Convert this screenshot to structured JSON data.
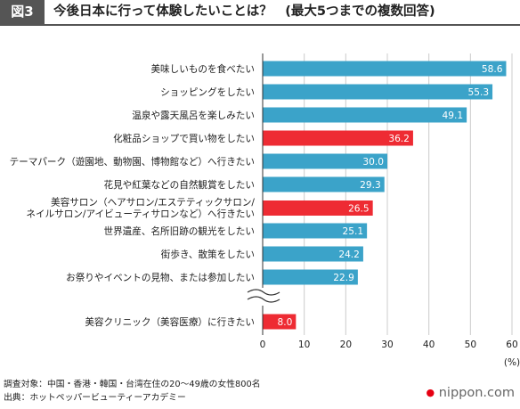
{
  "header": {
    "figure_label": "図3",
    "title": "今後日本に行って体験したいことは？　(最大5つまでの複数回答)"
  },
  "chart_data": {
    "type": "bar",
    "orientation": "horizontal",
    "categories": [
      [
        "美味しいものを食べたい"
      ],
      [
        "ショッピングをしたい"
      ],
      [
        "温泉や露天風呂を楽しみたい"
      ],
      [
        "化粧品ショップで買い物をしたい"
      ],
      [
        "テーマパーク（遊園地、動物園、博物館など）へ行きたい"
      ],
      [
        "花見や紅葉などの自然観賞をしたい"
      ],
      [
        "美容サロン（ヘアサロン/エステティックサロン/",
        "ネイルサロン/アイビューティサロンなど）へ行きたい"
      ],
      [
        "世界遺産、名所旧跡の観光をしたい"
      ],
      [
        "街歩き、散策をしたい"
      ],
      [
        "お祭りやイベントの見物、または参加したい"
      ],
      [
        "美容クリニック（美容医療）に行きたい"
      ]
    ],
    "values": [
      58.6,
      55.3,
      49.1,
      36.2,
      30.0,
      29.3,
      26.5,
      25.1,
      24.2,
      22.9,
      8.0
    ],
    "value_labels": [
      "58.6",
      "55.3",
      "49.1",
      "36.2",
      "30.0",
      "29.3",
      "26.5",
      "25.1",
      "24.2",
      "22.9",
      "8.0"
    ],
    "highlighted": [
      false,
      false,
      false,
      true,
      false,
      false,
      true,
      false,
      false,
      false,
      true
    ],
    "colors": {
      "normal": "#3ba3c9",
      "highlight": "#ee2b33"
    },
    "xlim": [
      0,
      60
    ],
    "xticks": [
      "0",
      "10",
      "20",
      "30",
      "40",
      "50",
      "60"
    ],
    "xunit": "(%)",
    "grid": true,
    "axis_break_before_last": true
  },
  "footer": {
    "survey_target": "調査対象：中国・香港・韓国・台湾在住の20〜49歳の女性800名",
    "source": "出典：ホットペッパービューティーアカデミー",
    "brand": "nippon.com"
  }
}
